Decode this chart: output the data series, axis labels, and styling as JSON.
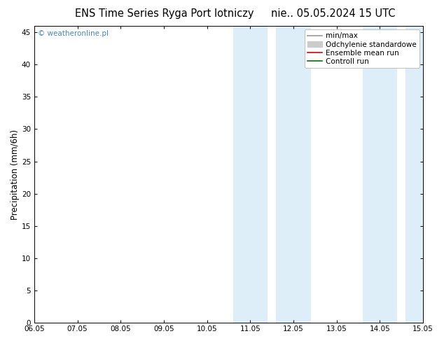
{
  "title_left": "ENS Time Series Ryga Port lotniczy",
  "title_right": "nie.. 05.05.2024 15 UTC",
  "ylabel": "Precipitation (mm/6h)",
  "xlabel": "",
  "bg_color": "#ffffff",
  "plot_bg_color": "#ffffff",
  "x_start": 0,
  "x_end": 9,
  "x_ticks": [
    0,
    1,
    2,
    3,
    4,
    5,
    6,
    7,
    8,
    9
  ],
  "x_tick_labels": [
    "06.05",
    "07.05",
    "08.05",
    "09.05",
    "10.05",
    "11.05",
    "12.05",
    "13.05",
    "14.05",
    "15.05"
  ],
  "ylim": [
    0,
    46
  ],
  "y_ticks": [
    0,
    5,
    10,
    15,
    20,
    25,
    30,
    35,
    40,
    45
  ],
  "shaded_bands": [
    [
      4.6,
      5.4
    ],
    [
      5.6,
      6.4
    ],
    [
      7.6,
      8.4
    ],
    [
      8.6,
      9.0
    ]
  ],
  "shade_color": "#ddeef8",
  "legend_items": [
    {
      "label": "min/max",
      "color": "#999999",
      "lw": 1.2,
      "ls": "-",
      "type": "line"
    },
    {
      "label": "Odchylenie standardowe",
      "color": "#cccccc",
      "lw": 8,
      "ls": "-",
      "type": "patch"
    },
    {
      "label": "Ensemble mean run",
      "color": "#dd0000",
      "lw": 1.2,
      "ls": "-",
      "type": "line"
    },
    {
      "label": "Controll run",
      "color": "#007700",
      "lw": 1.2,
      "ls": "-",
      "type": "line"
    }
  ],
  "watermark_text": "© weatheronline.pl",
  "watermark_color": "#4488cc",
  "title_fontsize": 10.5,
  "tick_fontsize": 7.5,
  "ylabel_fontsize": 8.5,
  "legend_fontsize": 7.5
}
